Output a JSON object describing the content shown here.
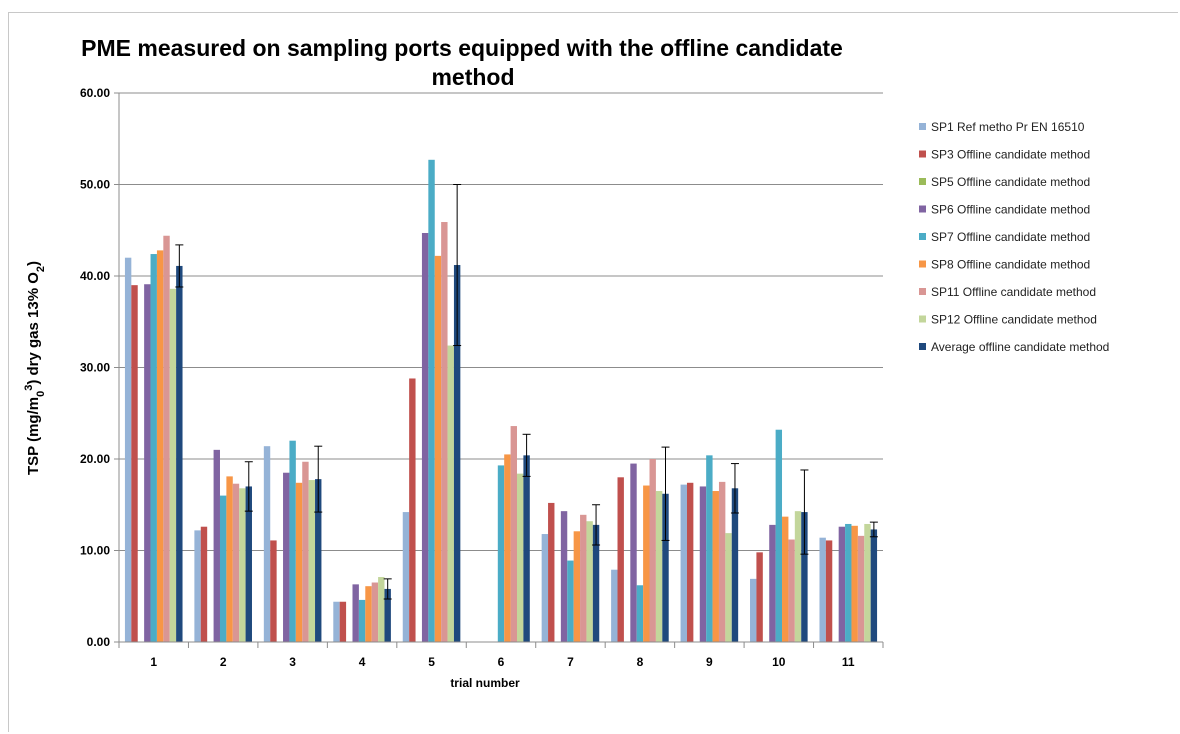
{
  "chart_data": {
    "type": "bar",
    "title_line1": "PME measured on sampling ports equipped with the offline candidate",
    "title_line2": "method",
    "ylabel_main": "TSP (mg/m",
    "ylabel_sub0": "0",
    "ylabel_sup3": "3",
    "ylabel_mid": ") dry gas 13% O",
    "ylabel_sub2": "2",
    "ylabel_end": ")",
    "xlabel": "trial number",
    "ylim": [
      0,
      60
    ],
    "ytick_labels": [
      "0.00",
      "10.00",
      "20.00",
      "30.00",
      "40.00",
      "50.00",
      "60.00"
    ],
    "categories": [
      "1",
      "2",
      "3",
      "4",
      "5",
      "6",
      "7",
      "8",
      "9",
      "10",
      "11"
    ],
    "grid": true,
    "legend_position": "right",
    "series": [
      {
        "name": "SP1 Ref metho Pr EN 16510",
        "color": "#95b3d7",
        "values": [
          42.0,
          12.2,
          21.4,
          4.4,
          14.2,
          null,
          11.8,
          7.9,
          17.2,
          6.9,
          11.4
        ]
      },
      {
        "name": "SP3 Offline candidate method",
        "color": "#c0504d",
        "values": [
          39.0,
          12.6,
          11.1,
          4.4,
          28.8,
          null,
          15.2,
          18.0,
          17.4,
          9.8,
          11.1
        ]
      },
      {
        "name": "SP5 Offline candidate method",
        "color": "#9bbb59",
        "values": [
          null,
          null,
          null,
          null,
          null,
          null,
          null,
          null,
          null,
          null,
          null
        ]
      },
      {
        "name": "SP6 Offline candidate method",
        "color": "#8064a2",
        "values": [
          39.1,
          21.0,
          18.5,
          6.3,
          44.7,
          null,
          14.3,
          19.5,
          17.0,
          12.8,
          12.6
        ]
      },
      {
        "name": "SP7 Offline candidate method",
        "color": "#4bacc6",
        "values": [
          42.4,
          16.0,
          22.0,
          4.6,
          52.7,
          19.3,
          8.9,
          6.2,
          20.4,
          23.2,
          12.9
        ]
      },
      {
        "name": "SP8 Offline candidate method",
        "color": "#f79646",
        "values": [
          42.8,
          18.1,
          17.4,
          6.1,
          42.2,
          20.5,
          12.1,
          17.1,
          16.5,
          13.7,
          12.7
        ]
      },
      {
        "name": "SP11 Offline candidate method",
        "color": "#d99694",
        "values": [
          44.4,
          17.3,
          19.7,
          6.5,
          45.9,
          23.6,
          13.9,
          20.0,
          17.5,
          11.2,
          11.6
        ]
      },
      {
        "name": "SP12 Offline candidate method",
        "color": "#c3d69b",
        "values": [
          38.6,
          16.8,
          17.7,
          7.1,
          32.4,
          18.4,
          13.2,
          16.5,
          11.9,
          14.3,
          12.9
        ]
      },
      {
        "name": "Average offline candidate method",
        "color": "#1f497d",
        "values": [
          41.1,
          17.0,
          17.8,
          5.8,
          41.2,
          20.4,
          12.8,
          16.2,
          16.8,
          14.2,
          12.3
        ],
        "error": [
          2.3,
          2.7,
          3.6,
          1.1,
          8.8,
          2.3,
          2.2,
          5.1,
          2.7,
          4.6,
          0.8
        ]
      }
    ]
  }
}
